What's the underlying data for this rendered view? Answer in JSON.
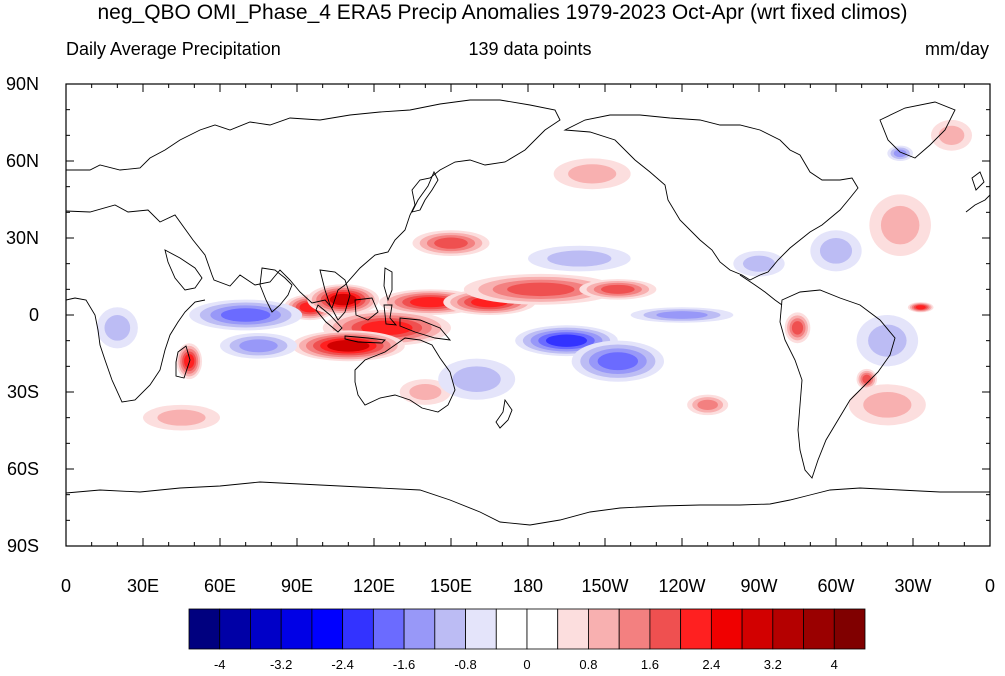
{
  "title": "neg_QBO OMI_Phase_4 ERA5 Precip Anomalies 1979-2023 Oct-Apr (wrt fixed climos)",
  "subtitle_left": "Daily Average Precipitation",
  "subtitle_center": "139 data points",
  "subtitle_right": "mm/day",
  "axes": {
    "x_ticks": [
      "0",
      "30E",
      "60E",
      "90E",
      "120E",
      "150E",
      "180",
      "150W",
      "120W",
      "90W",
      "60W",
      "30W",
      "0"
    ],
    "y_ticks": [
      "90N",
      "60N",
      "30N",
      "0",
      "30S",
      "60S",
      "90S"
    ]
  },
  "colorbar": {
    "labels": [
      "-4",
      "-3.2",
      "-2.4",
      "-1.6",
      "-0.8",
      "0",
      "0.8",
      "1.6",
      "2.4",
      "3.2",
      "4"
    ],
    "colors": [
      "#00007f",
      "#0000a6",
      "#0000c8",
      "#0000e6",
      "#0000ff",
      "#3333ff",
      "#6b6bff",
      "#9898f8",
      "#bcbcf4",
      "#e4e4fa",
      "#ffffff",
      "#ffffff",
      "#fcdede",
      "#f8b0b0",
      "#f38080",
      "#ef5050",
      "#ff2020",
      "#f00000",
      "#d20000",
      "#b40000",
      "#9a0000",
      "#800000"
    ]
  },
  "anomalies": [
    {
      "kind": "pos",
      "level": 4,
      "lon": 95,
      "lat": 3,
      "rx": 10,
      "ry": 5
    },
    {
      "kind": "pos",
      "level": 5,
      "lon": 108,
      "lat": 6,
      "rx": 14,
      "ry": 6
    },
    {
      "kind": "pos",
      "level": 4,
      "lon": 125,
      "lat": -5,
      "rx": 25,
      "ry": 7
    },
    {
      "kind": "pos",
      "level": 5,
      "lon": 110,
      "lat": -12,
      "rx": 22,
      "ry": 6
    },
    {
      "kind": "pos",
      "level": 4,
      "lon": 142,
      "lat": 5,
      "rx": 20,
      "ry": 5
    },
    {
      "kind": "pos",
      "level": 4,
      "lon": 165,
      "lat": 5,
      "rx": 18,
      "ry": 5
    },
    {
      "kind": "pos",
      "level": 3,
      "lon": 185,
      "lat": 10,
      "rx": 30,
      "ry": 6
    },
    {
      "kind": "pos",
      "level": 3,
      "lon": 215,
      "lat": 10,
      "rx": 15,
      "ry": 4
    },
    {
      "kind": "pos",
      "level": 3,
      "lon": 150,
      "lat": 28,
      "rx": 15,
      "ry": 5
    },
    {
      "kind": "pos",
      "level": 4,
      "lon": 48,
      "lat": -18,
      "rx": 5,
      "ry": 7
    },
    {
      "kind": "pos",
      "level": 3,
      "lon": 285,
      "lat": -5,
      "rx": 5,
      "ry": 6
    },
    {
      "kind": "pos",
      "level": 4,
      "lon": 333,
      "lat": 3,
      "rx": 5,
      "ry": 2
    },
    {
      "kind": "pos",
      "level": 3,
      "lon": 312,
      "lat": -25,
      "rx": 4,
      "ry": 4
    },
    {
      "kind": "pos",
      "level": 1,
      "lon": 325,
      "lat": 35,
      "rx": 12,
      "ry": 12
    },
    {
      "kind": "pos",
      "level": 1,
      "lon": 205,
      "lat": 55,
      "rx": 15,
      "ry": 6
    },
    {
      "kind": "pos",
      "level": 1,
      "lon": 320,
      "lat": -35,
      "rx": 15,
      "ry": 8
    },
    {
      "kind": "pos",
      "level": 2,
      "lon": 250,
      "lat": -35,
      "rx": 8,
      "ry": 4
    },
    {
      "kind": "pos",
      "level": 1,
      "lon": 140,
      "lat": -30,
      "rx": 10,
      "ry": 5
    },
    {
      "kind": "pos",
      "level": 1,
      "lon": 45,
      "lat": -40,
      "rx": 15,
      "ry": 5
    },
    {
      "kind": "pos",
      "level": 1,
      "lon": 345,
      "lat": 70,
      "rx": 8,
      "ry": 6
    },
    {
      "kind": "neg",
      "level": 3,
      "lon": 70,
      "lat": 0,
      "rx": 22,
      "ry": 6
    },
    {
      "kind": "neg",
      "level": 2,
      "lon": 75,
      "lat": -12,
      "rx": 15,
      "ry": 5
    },
    {
      "kind": "neg",
      "level": 4,
      "lon": 195,
      "lat": -10,
      "rx": 20,
      "ry": 6
    },
    {
      "kind": "neg",
      "level": 3,
      "lon": 215,
      "lat": -18,
      "rx": 18,
      "ry": 8
    },
    {
      "kind": "neg",
      "level": 2,
      "lon": 240,
      "lat": 0,
      "rx": 20,
      "ry": 3
    },
    {
      "kind": "neg",
      "level": 1,
      "lon": 160,
      "lat": -25,
      "rx": 15,
      "ry": 8
    },
    {
      "kind": "neg",
      "level": 1,
      "lon": 200,
      "lat": 22,
      "rx": 20,
      "ry": 5
    },
    {
      "kind": "neg",
      "level": 1,
      "lon": 320,
      "lat": -10,
      "rx": 12,
      "ry": 10
    },
    {
      "kind": "neg",
      "level": 1,
      "lon": 270,
      "lat": 20,
      "rx": 10,
      "ry": 5
    },
    {
      "kind": "neg",
      "level": 1,
      "lon": 20,
      "lat": -5,
      "rx": 8,
      "ry": 8
    },
    {
      "kind": "neg",
      "level": 1,
      "lon": 300,
      "lat": 25,
      "rx": 10,
      "ry": 8
    },
    {
      "kind": "neg",
      "level": 2,
      "lon": 325,
      "lat": 63,
      "rx": 5,
      "ry": 3
    }
  ]
}
